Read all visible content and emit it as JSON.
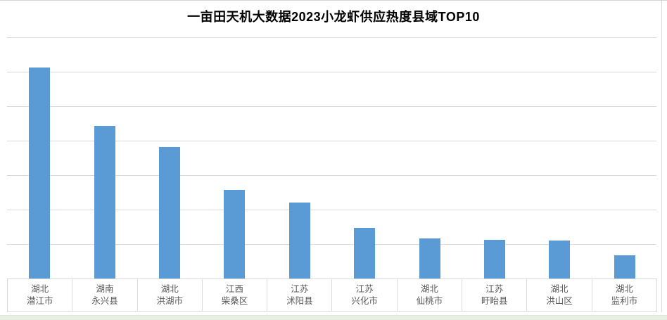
{
  "colors": {
    "bar": "#5b9bd5",
    "gridline": "#d9d9d9",
    "table_border": "#d9d9d9",
    "axis_label_text": "#595959",
    "title_text": "#000000",
    "bottom_strip": "#e6efe1",
    "background": "#ffffff"
  },
  "chart_data": {
    "type": "bar",
    "title": "一亩田天机大数据2023小龙虾供应热度县域TOP10",
    "categories": [
      "湖北 潜江市",
      "湖南 永兴县",
      "湖北 洪湖市",
      "江西 柴桑区",
      "江苏 沭阳县",
      "江苏 兴化市",
      "湖北 仙桃市",
      "江苏 盱眙县",
      "湖北 洪山区",
      "湖北 监利市"
    ],
    "categories_lines": [
      [
        "湖北",
        "潜江市"
      ],
      [
        "湖南",
        "永兴县"
      ],
      [
        "湖北",
        "洪湖市"
      ],
      [
        "江西",
        "柴桑区"
      ],
      [
        "江苏",
        "沭阳县"
      ],
      [
        "江苏",
        "兴化市"
      ],
      [
        "湖北",
        "仙桃市"
      ],
      [
        "江苏",
        "盱眙县"
      ],
      [
        "湖北",
        "洪山区"
      ],
      [
        "湖北",
        "监利市"
      ]
    ],
    "values": [
      613,
      443,
      382,
      257,
      220,
      146,
      116,
      112,
      110,
      67
    ],
    "value_scale_note": "y-axis tick labels are cropped out of the screenshot; values estimated from gridlines, 1 gridline interval = 100 units",
    "xlabel": "",
    "ylabel": "",
    "ylim": [
      0,
      700
    ],
    "grid": true,
    "gridline_interval": 100,
    "y_axis_tick_labels_visible": false,
    "legend": "none",
    "bar_color": "#5b9bd5",
    "series_name": "供应热度"
  }
}
